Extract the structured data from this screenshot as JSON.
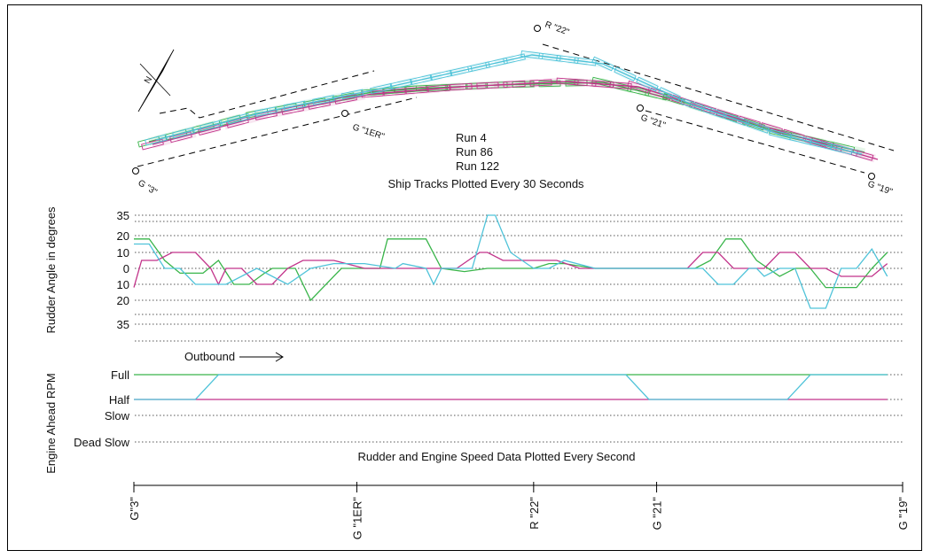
{
  "colors": {
    "run4": "#39b54a",
    "run86": "#c2338a",
    "run122": "#4fc3d9"
  },
  "icons": {
    "north_arrow": "north-arrow-icon"
  },
  "chart_data": [
    {
      "type": "line",
      "title": "Ship Tracks Plotted Every 30 Seconds",
      "legend": [
        "Run 4",
        "Run 86",
        "Run 122"
      ],
      "legend_placement": "center",
      "buoys": [
        {
          "label": "G \"3\""
        },
        {
          "label": "G \"1ER\""
        },
        {
          "label": "R \"22\""
        },
        {
          "label": "G \"21\""
        },
        {
          "label": "G \"19\""
        }
      ],
      "north_label": "N"
    },
    {
      "type": "line",
      "ylabel": "Rudder Angle in degrees",
      "yticks": [
        "35",
        "20",
        "10",
        "0",
        "10",
        "20",
        "35"
      ],
      "grid": true,
      "series": [
        {
          "name": "Run 4",
          "x": [
            0,
            2,
            4,
            6,
            9,
            11,
            13,
            15,
            17,
            18,
            21,
            23,
            27,
            32,
            33,
            38,
            40,
            43,
            46,
            52,
            54,
            56,
            60,
            62,
            64,
            66,
            68,
            70,
            73,
            75,
            77,
            79,
            81,
            84,
            86,
            88,
            90,
            92,
            94,
            96,
            98
          ],
          "y": [
            18,
            18,
            5,
            -3,
            -3,
            5,
            -10,
            -10,
            -3,
            0,
            0,
            -20,
            0,
            0,
            18,
            18,
            0,
            -2,
            0,
            0,
            3,
            3,
            0,
            0,
            0,
            0,
            0,
            0,
            0,
            5,
            18,
            18,
            5,
            -5,
            0,
            0,
            -12,
            -12,
            -12,
            0,
            10
          ]
        },
        {
          "name": "Run 86",
          "x": [
            0,
            1,
            3,
            5,
            8,
            10,
            11,
            12,
            14,
            16,
            18,
            20,
            22,
            26,
            30,
            35,
            40,
            42,
            45,
            46,
            48,
            52,
            55,
            58,
            62,
            64,
            66,
            68,
            70,
            72,
            74,
            76,
            78,
            80,
            82,
            84,
            86,
            88,
            90,
            92,
            94,
            96,
            98
          ],
          "y": [
            -12,
            5,
            5,
            10,
            10,
            0,
            -10,
            0,
            0,
            -10,
            -10,
            0,
            5,
            5,
            0,
            0,
            0,
            0,
            10,
            10,
            5,
            5,
            5,
            0,
            0,
            0,
            0,
            0,
            0,
            0,
            10,
            10,
            0,
            0,
            0,
            10,
            10,
            0,
            0,
            -5,
            -5,
            -5,
            3
          ]
        },
        {
          "name": "Run 122",
          "x": [
            0,
            2,
            4,
            6,
            8,
            10,
            12,
            16,
            20,
            23,
            26,
            30,
            34,
            35,
            38,
            39,
            40,
            44,
            46,
            47,
            49,
            52,
            54,
            56,
            60,
            62,
            64,
            66,
            68,
            70,
            72,
            74,
            76,
            78,
            80,
            81,
            82,
            84,
            86,
            88,
            90,
            92,
            94,
            96,
            98
          ],
          "y": [
            15,
            15,
            0,
            0,
            -10,
            -10,
            -10,
            0,
            -10,
            0,
            3,
            3,
            0,
            3,
            0,
            -10,
            0,
            0,
            35,
            35,
            10,
            0,
            0,
            5,
            0,
            0,
            0,
            0,
            0,
            0,
            0,
            0,
            -10,
            -10,
            0,
            0,
            -5,
            0,
            0,
            -25,
            -25,
            0,
            0,
            12,
            -5
          ]
        }
      ]
    },
    {
      "type": "line",
      "ylabel": "Engine Ahead RPM",
      "yticks": [
        "Full",
        "Half",
        "Slow",
        "Dead Slow"
      ],
      "annotation": "Outbound",
      "title": "Rudder and Engine Speed Data Plotted Every Second",
      "grid": true,
      "series": [
        {
          "name": "Run 4",
          "x": [
            0,
            20,
            28,
            30,
            32,
            38,
            44,
            55,
            65,
            75,
            85,
            95,
            98
          ],
          "y": [
            "Full",
            "Full",
            "Full",
            "Full",
            "Full",
            "Full",
            "Full",
            "Full",
            "Full",
            "Full",
            "Full",
            "Full",
            "Full"
          ]
        },
        {
          "name": "Run 86",
          "x": [
            0,
            10,
            20,
            30,
            40,
            50,
            60,
            64,
            68,
            69,
            72,
            80,
            90,
            98
          ],
          "y": [
            "Half",
            "Half",
            "Half",
            "Half",
            "Half",
            "Half",
            "Half",
            "Half",
            "Half",
            "Half",
            "Half",
            "Half",
            "Half",
            "Half"
          ]
        },
        {
          "name": "Run 122",
          "x": [
            0,
            2,
            5,
            8,
            11,
            13,
            20,
            30,
            40,
            50,
            60,
            63,
            64,
            67,
            70,
            72,
            80,
            85,
            88,
            90,
            91,
            98
          ],
          "y": [
            "Half",
            "Half",
            "Half",
            "Half",
            "Full",
            "Full",
            "Full",
            "Full",
            "Full",
            "Full",
            "Full",
            "Full",
            "Full",
            "Half",
            "Half",
            "Half",
            "Half",
            "Half",
            "Full",
            "Full",
            "Full",
            "Full"
          ]
        }
      ],
      "xticks": [
        "G\"3\"",
        "G \"1ER\"",
        "R \"22\"",
        "G \"21\"",
        "G \"19\""
      ],
      "xtick_positions": [
        0,
        29,
        52,
        68,
        100
      ]
    }
  ]
}
